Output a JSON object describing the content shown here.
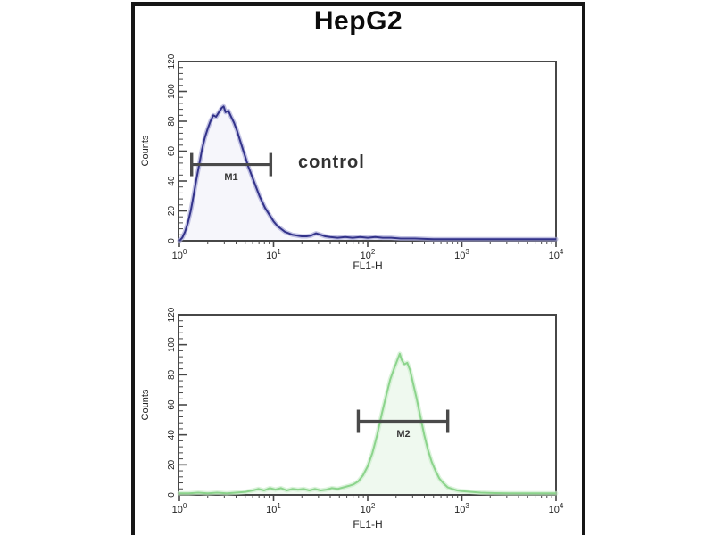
{
  "figure": {
    "title": "HepG2",
    "background_color": "#ffffff",
    "frame_color": "#161616"
  },
  "chart_data": [
    {
      "type": "area",
      "name": "control-histogram",
      "annotation": "control",
      "line_color": "#33338a",
      "glow_color": "#a3a3d6",
      "fill_color": "rgba(110,110,180,0.06)",
      "x_axis": {
        "label": "FL1-H",
        "scale": "log10",
        "min": 1,
        "max": 10000,
        "tick_exponents": [
          0,
          1,
          2,
          3,
          4
        ]
      },
      "y_axis": {
        "label": "Counts",
        "min": 0,
        "max": 120,
        "ticks": [
          0,
          20,
          40,
          60,
          80,
          100,
          120
        ]
      },
      "marker": {
        "label": "M1",
        "counts_level": 51,
        "log_from": 0.13,
        "log_to": 0.97,
        "fl1h_from": 1.3,
        "fl1h_to": 9.3,
        "color": "#4a4a4a"
      },
      "peak": {
        "fl1h": 3.0,
        "counts": 90
      },
      "points": [
        [
          0.0,
          0
        ],
        [
          0.03,
          2
        ],
        [
          0.06,
          6
        ],
        [
          0.09,
          12
        ],
        [
          0.12,
          20
        ],
        [
          0.15,
          30
        ],
        [
          0.18,
          41
        ],
        [
          0.21,
          51
        ],
        [
          0.24,
          61
        ],
        [
          0.27,
          69
        ],
        [
          0.3,
          75
        ],
        [
          0.33,
          80
        ],
        [
          0.36,
          84
        ],
        [
          0.39,
          83
        ],
        [
          0.42,
          86
        ],
        [
          0.45,
          89
        ],
        [
          0.47,
          90
        ],
        [
          0.49,
          86
        ],
        [
          0.52,
          87
        ],
        [
          0.55,
          83
        ],
        [
          0.58,
          79
        ],
        [
          0.61,
          74
        ],
        [
          0.64,
          68
        ],
        [
          0.67,
          62
        ],
        [
          0.7,
          56
        ],
        [
          0.73,
          50
        ],
        [
          0.76,
          45
        ],
        [
          0.79,
          40
        ],
        [
          0.82,
          35
        ],
        [
          0.85,
          30
        ],
        [
          0.88,
          26
        ],
        [
          0.91,
          22
        ],
        [
          0.94,
          19
        ],
        [
          0.97,
          16
        ],
        [
          1.0,
          13
        ],
        [
          1.04,
          10
        ],
        [
          1.08,
          8
        ],
        [
          1.12,
          6
        ],
        [
          1.16,
          5
        ],
        [
          1.2,
          4
        ],
        [
          1.25,
          3.5
        ],
        [
          1.3,
          3
        ],
        [
          1.35,
          3
        ],
        [
          1.4,
          3.5
        ],
        [
          1.45,
          5
        ],
        [
          1.5,
          4
        ],
        [
          1.55,
          3
        ],
        [
          1.6,
          2.5
        ],
        [
          1.68,
          2
        ],
        [
          1.76,
          2.5
        ],
        [
          1.84,
          2
        ],
        [
          1.92,
          2.5
        ],
        [
          2.0,
          2
        ],
        [
          2.08,
          2.5
        ],
        [
          2.16,
          2
        ],
        [
          2.25,
          2
        ],
        [
          2.35,
          1.5
        ],
        [
          2.5,
          1.5
        ],
        [
          2.7,
          1
        ],
        [
          2.9,
          1
        ],
        [
          3.1,
          1
        ],
        [
          3.4,
          1
        ],
        [
          3.7,
          1
        ],
        [
          4.0,
          1
        ]
      ]
    },
    {
      "type": "area",
      "name": "antibody-stained-histogram",
      "annotation": "",
      "line_color": "#8cd48c",
      "glow_color": "#c9ecc9",
      "fill_color": "rgba(140,212,140,0.14)",
      "x_axis": {
        "label": "FL1-H",
        "scale": "log10",
        "min": 1,
        "max": 10000,
        "tick_exponents": [
          0,
          1,
          2,
          3,
          4
        ]
      },
      "y_axis": {
        "label": "Counts",
        "min": 0,
        "max": 120,
        "ticks": [
          0,
          20,
          40,
          60,
          80,
          100,
          120
        ]
      },
      "marker": {
        "label": "M2",
        "counts_level": 49,
        "log_from": 1.9,
        "log_to": 2.85,
        "fl1h_from": 80,
        "fl1h_to": 710,
        "color": "#4a4a4a"
      },
      "peak": {
        "fl1h": 220,
        "counts": 94
      },
      "points": [
        [
          0.0,
          1
        ],
        [
          0.1,
          1
        ],
        [
          0.2,
          1.5
        ],
        [
          0.3,
          1
        ],
        [
          0.4,
          1.5
        ],
        [
          0.5,
          1
        ],
        [
          0.6,
          1.5
        ],
        [
          0.7,
          2
        ],
        [
          0.78,
          3
        ],
        [
          0.84,
          4
        ],
        [
          0.9,
          3
        ],
        [
          0.96,
          4.5
        ],
        [
          1.02,
          3.5
        ],
        [
          1.08,
          4.5
        ],
        [
          1.14,
          3
        ],
        [
          1.2,
          4
        ],
        [
          1.26,
          3.5
        ],
        [
          1.32,
          4
        ],
        [
          1.38,
          3
        ],
        [
          1.44,
          4
        ],
        [
          1.5,
          3
        ],
        [
          1.56,
          3.5
        ],
        [
          1.62,
          4.5
        ],
        [
          1.68,
          4
        ],
        [
          1.74,
          5
        ],
        [
          1.8,
          6
        ],
        [
          1.85,
          7
        ],
        [
          1.9,
          9
        ],
        [
          1.95,
          13
        ],
        [
          2.0,
          19
        ],
        [
          2.05,
          28
        ],
        [
          2.1,
          40
        ],
        [
          2.15,
          54
        ],
        [
          2.2,
          67
        ],
        [
          2.24,
          77
        ],
        [
          2.28,
          84
        ],
        [
          2.31,
          89
        ],
        [
          2.34,
          94
        ],
        [
          2.36,
          90
        ],
        [
          2.39,
          87
        ],
        [
          2.42,
          88
        ],
        [
          2.45,
          83
        ],
        [
          2.48,
          75
        ],
        [
          2.52,
          64
        ],
        [
          2.56,
          52
        ],
        [
          2.6,
          40
        ],
        [
          2.64,
          30
        ],
        [
          2.68,
          22
        ],
        [
          2.72,
          16
        ],
        [
          2.76,
          11
        ],
        [
          2.8,
          8
        ],
        [
          2.85,
          5
        ],
        [
          2.9,
          4
        ],
        [
          2.95,
          3
        ],
        [
          3.0,
          2.5
        ],
        [
          3.1,
          2
        ],
        [
          3.2,
          1.5
        ],
        [
          3.35,
          1.2
        ],
        [
          3.5,
          1
        ],
        [
          3.7,
          1
        ],
        [
          4.0,
          1
        ]
      ]
    }
  ]
}
